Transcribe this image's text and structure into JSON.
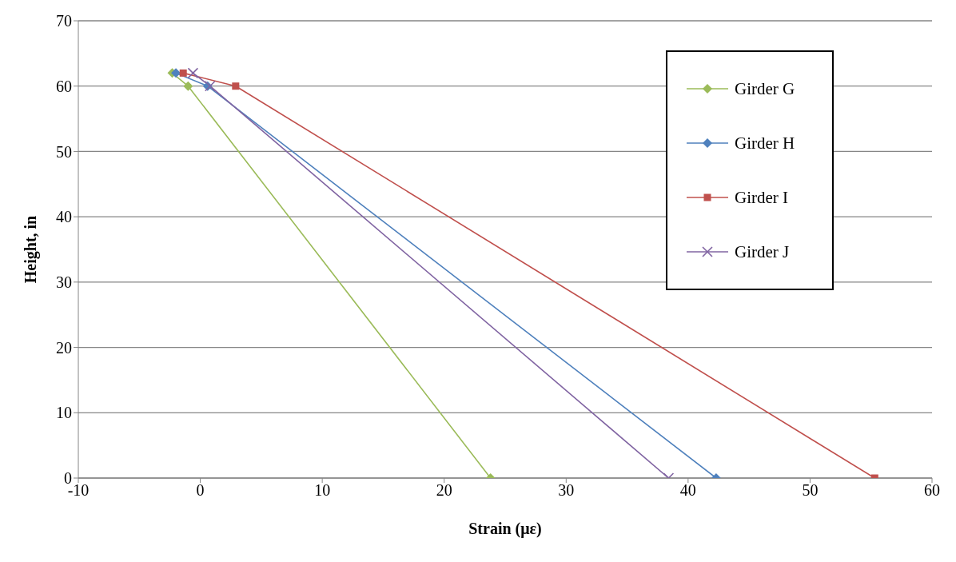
{
  "chart_data": {
    "type": "line",
    "xlabel": "Strain (με)",
    "ylabel": "Height, in",
    "xlim": [
      -10,
      60
    ],
    "xticks": [
      -10,
      0,
      10,
      20,
      30,
      40,
      50,
      60
    ],
    "ylim": [
      0,
      70
    ],
    "yticks": [
      0,
      10,
      20,
      30,
      40,
      50,
      60,
      70
    ],
    "grid": "y",
    "legend": "top right",
    "series": [
      {
        "name": "Girder G",
        "color": "#9bbb59",
        "marker": "diamond",
        "x": [
          -2.3,
          -1.0,
          23.8
        ],
        "values": [
          62,
          60,
          0
        ]
      },
      {
        "name": "Girder H",
        "color": "#4f81bd",
        "marker": "diamond",
        "x": [
          -2.0,
          0.6,
          42.3
        ],
        "values": [
          62,
          60,
          0
        ]
      },
      {
        "name": "Girder I",
        "color": "#c0504d",
        "marker": "square",
        "x": [
          -1.4,
          2.9,
          55.3
        ],
        "values": [
          62,
          60,
          0
        ]
      },
      {
        "name": "Girder J",
        "color": "#8064a2",
        "marker": "cross",
        "x": [
          -0.6,
          0.8,
          38.4
        ],
        "values": [
          62,
          60,
          0
        ]
      }
    ]
  }
}
